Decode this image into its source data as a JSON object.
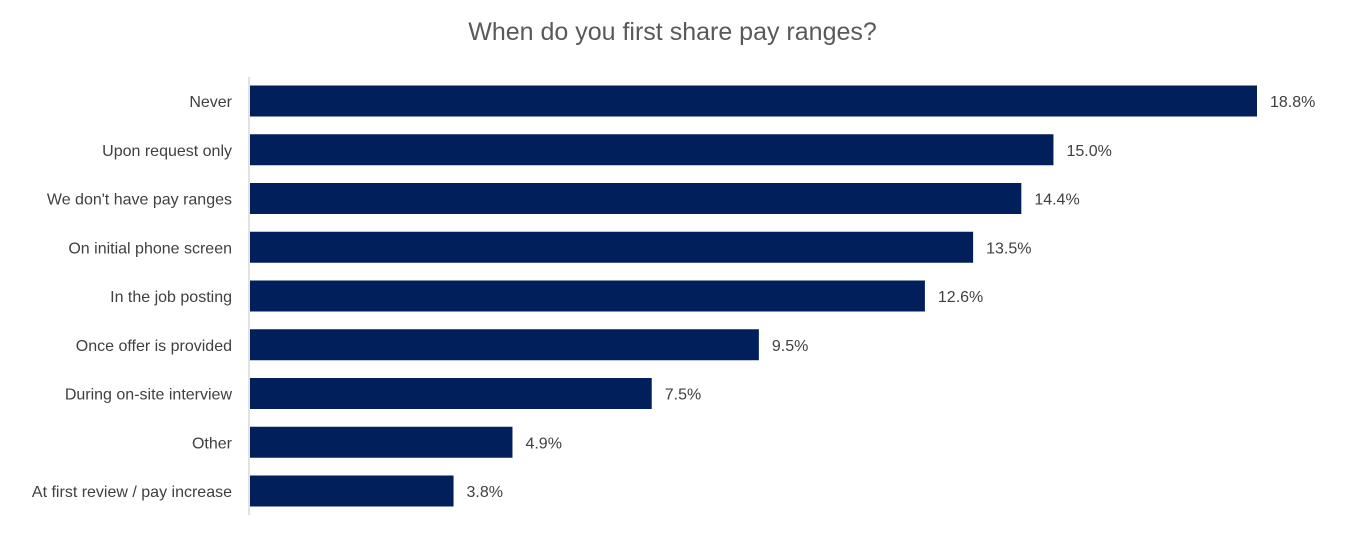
{
  "chart_data": {
    "type": "bar",
    "orientation": "horizontal",
    "title": "When do you first share pay ranges?",
    "categories": [
      "Never",
      "Upon request only",
      "We don't have pay ranges",
      "On initial phone screen",
      "In the job posting",
      "Once offer is provided",
      "During on-site interview",
      "Other",
      "At first review / pay increase"
    ],
    "values": [
      18.8,
      15.0,
      14.4,
      13.5,
      12.6,
      9.5,
      7.5,
      4.9,
      3.8
    ],
    "value_labels": [
      "18.8%",
      "15.0%",
      "14.4%",
      "13.5%",
      "12.6%",
      "9.5%",
      "7.5%",
      "4.9%",
      "3.8%"
    ],
    "unit": "%",
    "bar_color": "#001f5b",
    "axis_line_color": "#d9d9d9",
    "grid": false,
    "legend": "none"
  }
}
